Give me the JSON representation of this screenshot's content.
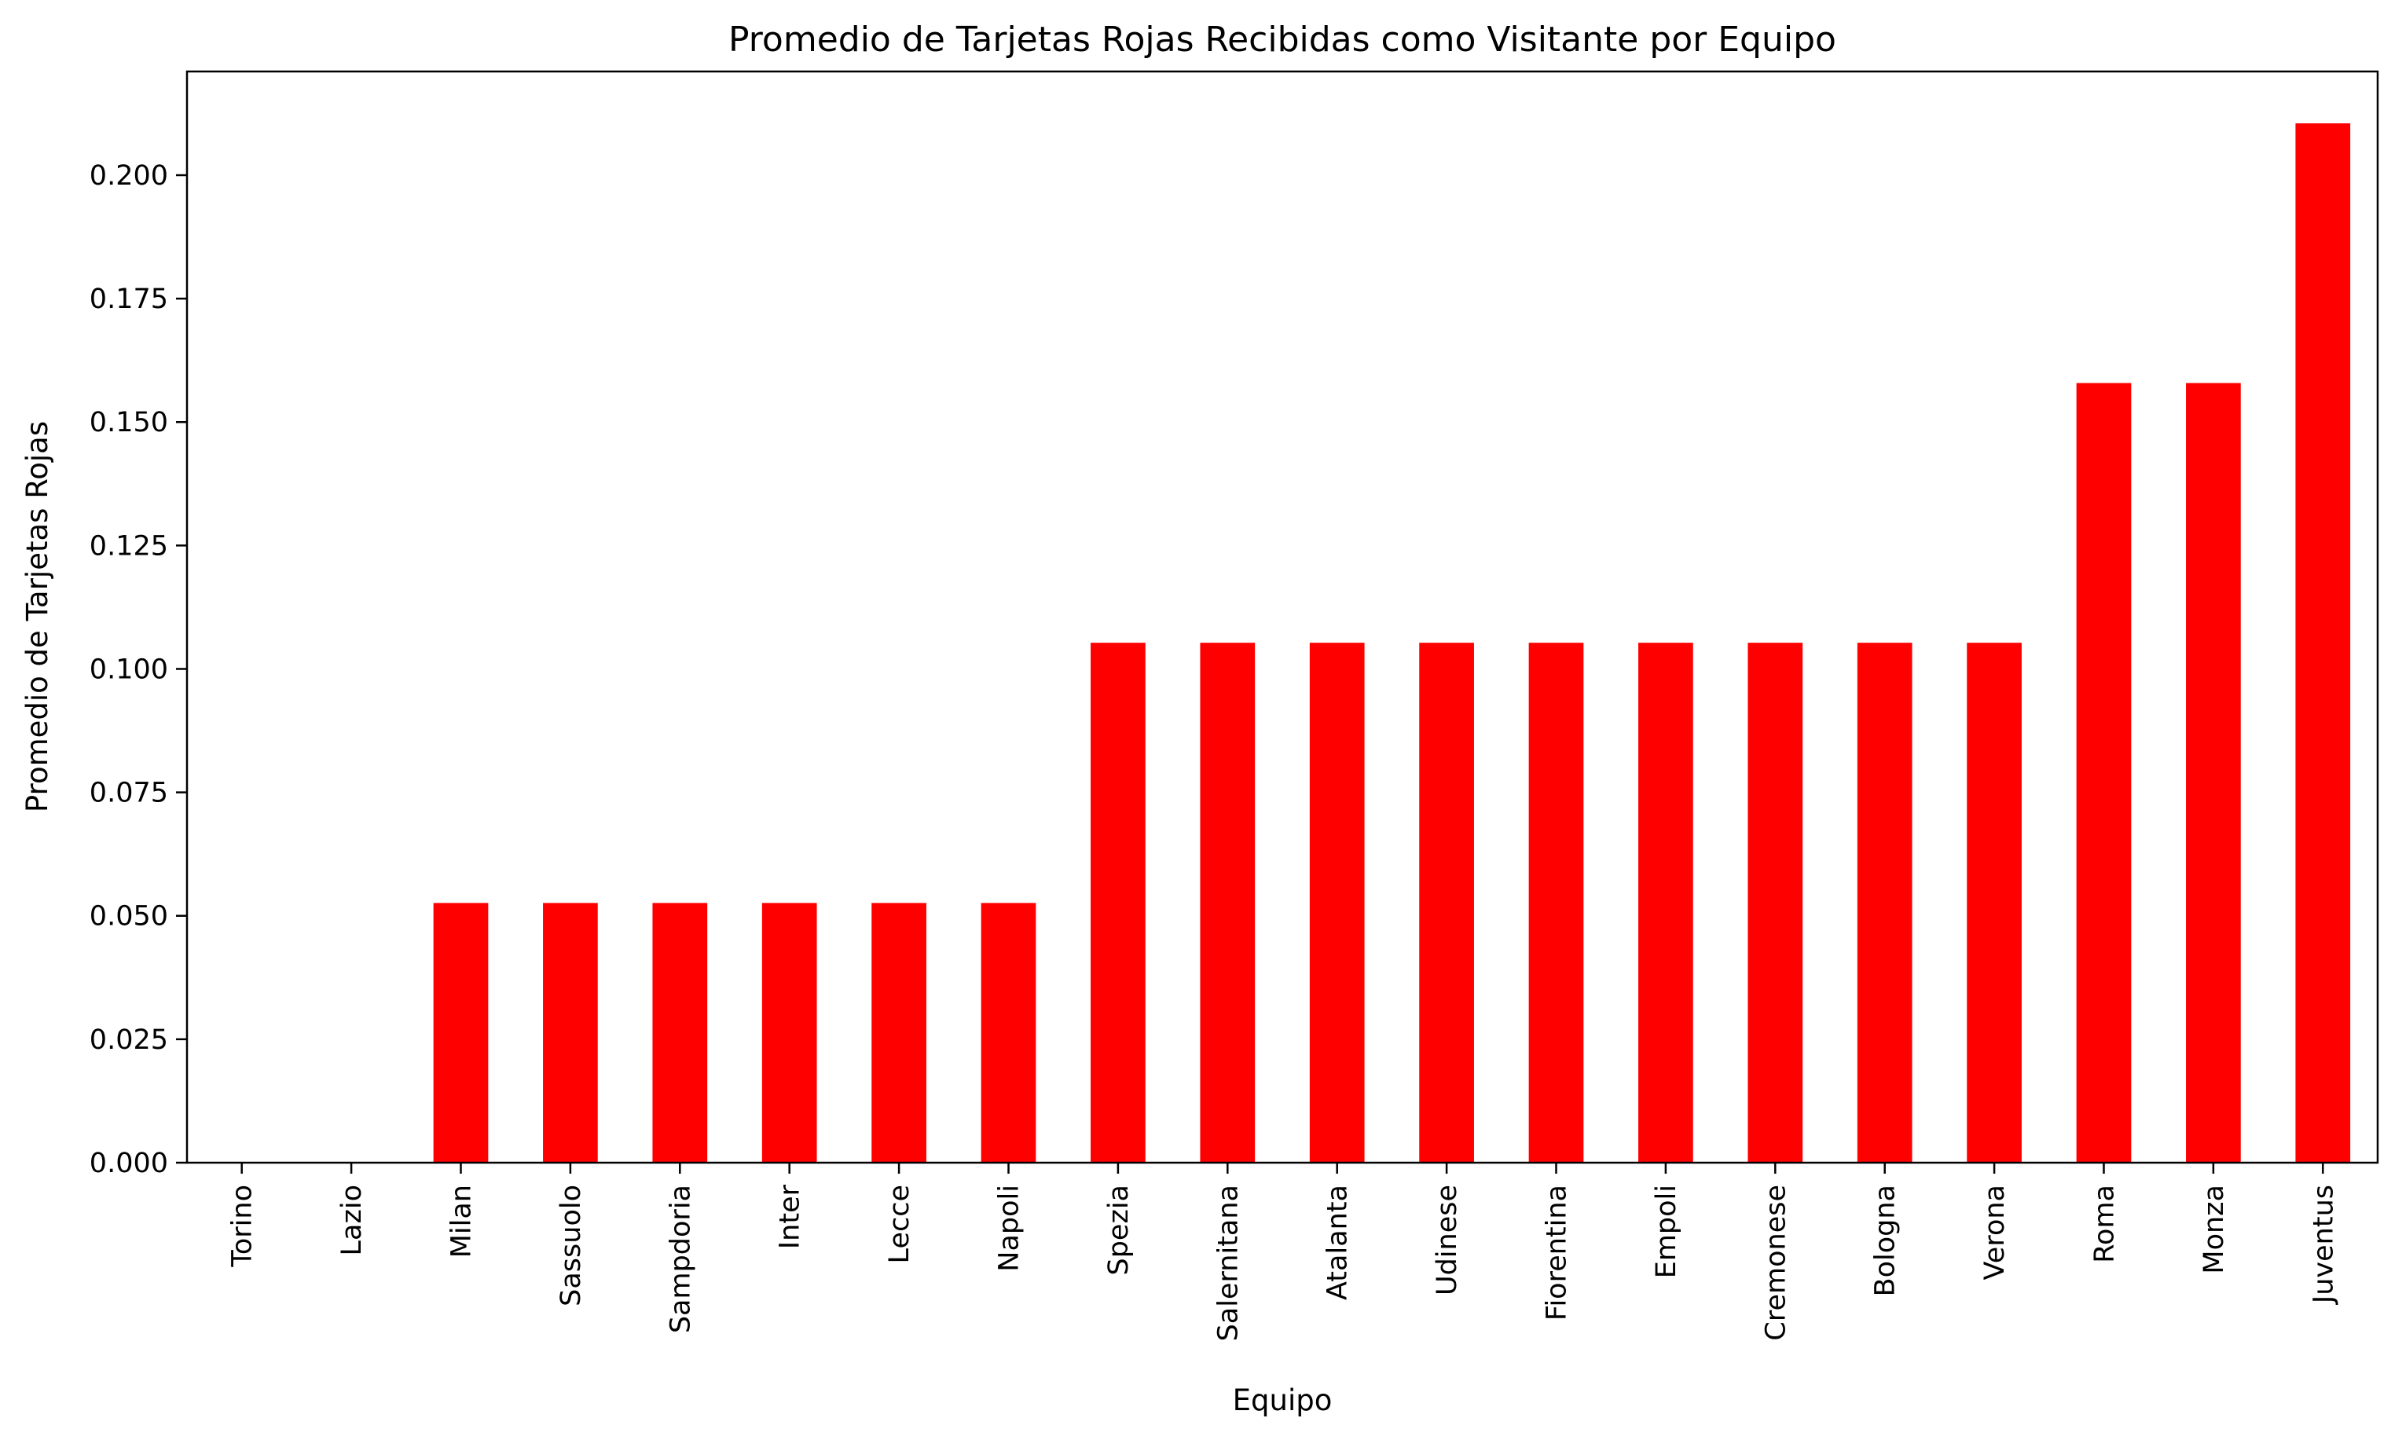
{
  "chart_data": {
    "type": "bar",
    "title": "Promedio de Tarjetas Rojas Recibidas como Visitante por Equipo",
    "xlabel": "Equipo",
    "ylabel": "Promedio de Tarjetas Rojas",
    "categories": [
      "Torino",
      "Lazio",
      "Milan",
      "Sassuolo",
      "Sampdoria",
      "Inter",
      "Lecce",
      "Napoli",
      "Spezia",
      "Salernitana",
      "Atalanta",
      "Udinese",
      "Fiorentina",
      "Empoli",
      "Cremonese",
      "Bologna",
      "Verona",
      "Roma",
      "Monza",
      "Juventus"
    ],
    "values": [
      0.0,
      0.0,
      0.0526,
      0.0526,
      0.0526,
      0.0526,
      0.0526,
      0.0526,
      0.1053,
      0.1053,
      0.1053,
      0.1053,
      0.1053,
      0.1053,
      0.1053,
      0.1053,
      0.1053,
      0.1579,
      0.1579,
      0.2105
    ],
    "ylim": [
      0,
      0.221
    ],
    "yticks": [
      0.0,
      0.025,
      0.05,
      0.075,
      0.1,
      0.125,
      0.15,
      0.175,
      0.2
    ],
    "ytick_labels": [
      "0.000",
      "0.025",
      "0.050",
      "0.075",
      "0.100",
      "0.125",
      "0.150",
      "0.175",
      "0.200"
    ],
    "bar_color": "#ff0000",
    "grid": false,
    "legend": "none"
  }
}
